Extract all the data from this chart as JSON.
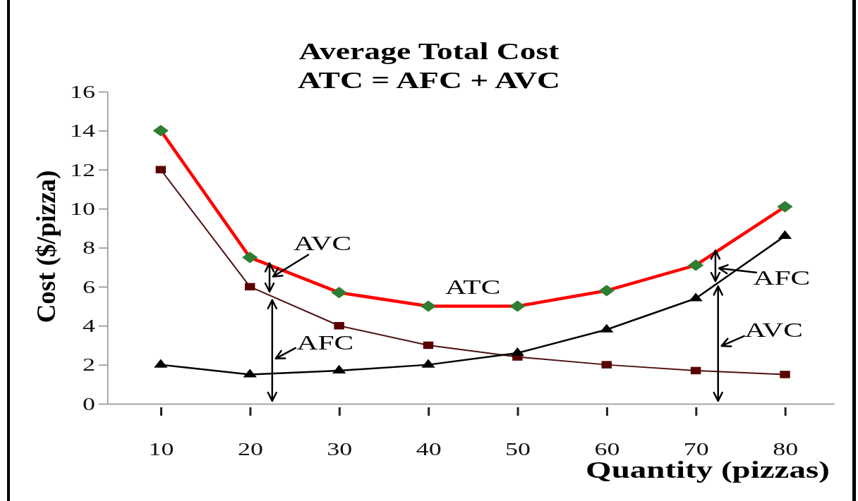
{
  "chart_data": {
    "type": "line",
    "title": "Average Total Cost",
    "subtitle": "ATC = AFC + AVC",
    "xlabel": "Quantity (pizzas)",
    "ylabel": "Cost ($/pizza)",
    "x": [
      10,
      20,
      30,
      40,
      50,
      60,
      70,
      80
    ],
    "series": [
      {
        "name": "ATC",
        "color": "#ff0000",
        "colors": [
          "#2e7d32",
          "#2e7d32",
          "#2e7d32",
          "#2e7d32",
          "#2e7d32",
          "#2e7d32",
          "#2e7d32",
          "#2e7d32"
        ],
        "marker": "diamond",
        "values": [
          14,
          7.5,
          5.7,
          5,
          5,
          5.8,
          7.1,
          10.1
        ]
      },
      {
        "color": "#4d1010",
        "colors": [
          "#5a0000",
          "#5a0000",
          "#5a0000",
          "#5a0000",
          "#5a0000",
          "#5a0000",
          "#5a0000",
          "#5a0000"
        ],
        "marker": "square",
        "values": [
          12,
          6,
          4,
          3,
          2.4,
          2,
          1.7,
          1.5
        ]
      },
      {
        "color": "#000000",
        "marker": "triangle",
        "values": [
          2,
          1.5,
          1.7,
          2,
          2.6,
          3.8,
          5.4,
          8.6
        ]
      }
    ],
    "xlim": [
      4,
      85.5
    ],
    "xticks": [
      10,
      20,
      30,
      40,
      50,
      60,
      70,
      80
    ],
    "ylim": [
      0,
      16
    ],
    "yticks": [
      0,
      2,
      4,
      6,
      8,
      10,
      12,
      14,
      16
    ],
    "annotations": [
      {
        "text": "AVC",
        "x": 22.2,
        "y": 7.1
      },
      {
        "text": "AFC",
        "x": 22.5,
        "y": 5.5
      },
      {
        "text": "AFC",
        "x": 72.2,
        "y": 7.75
      },
      {
        "text": "AVC",
        "x": 72.5,
        "y": 6.2
      }
    ]
  }
}
